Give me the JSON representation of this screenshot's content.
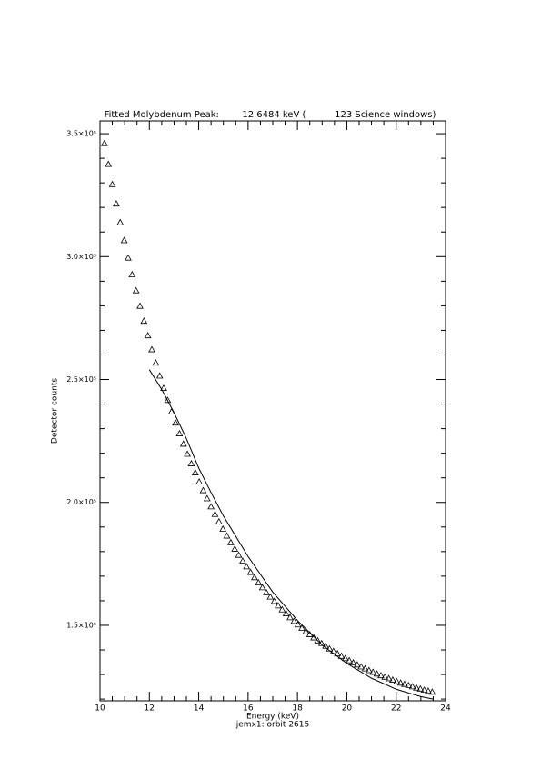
{
  "chart_data": {
    "type": "scatter",
    "title": "Fitted Molybdenum Peak:        12.6484 keV (          123 Science windows)",
    "subtitle": "jemx1: orbit 2615",
    "x_label": "Energy (keV)",
    "y_label": "Detector counts",
    "xlim": [
      10,
      24
    ],
    "ylim": [
      119300,
      355200
    ],
    "xticks": [
      10,
      12,
      14,
      16,
      18,
      20,
      22,
      24
    ],
    "xminorticks": [
      10.5,
      11,
      11.5,
      12.5,
      13,
      13.5,
      14.5,
      15,
      15.5,
      16.5,
      17,
      17.5,
      18.5,
      19,
      19.5,
      20.5,
      21,
      21.5,
      22.5,
      23,
      23.5
    ],
    "yticks": [
      {
        "value": 150000,
        "label": "1.5×10⁵"
      },
      {
        "value": 200000,
        "label": "2.0×10⁵"
      },
      {
        "value": 250000,
        "label": "2.5×10⁵"
      },
      {
        "value": 300000,
        "label": "3.0×10⁵"
      },
      {
        "value": 350000,
        "label": "3.5×10⁵"
      }
    ],
    "yminorticks": [
      120000,
      130000,
      140000,
      160000,
      170000,
      180000,
      190000,
      210000,
      220000,
      230000,
      240000,
      260000,
      270000,
      280000,
      290000,
      310000,
      320000,
      330000,
      340000
    ],
    "color": "#000000",
    "x": [
      10.18,
      10.34,
      10.5,
      10.66,
      10.82,
      10.98,
      11.14,
      11.3,
      11.46,
      11.62,
      11.78,
      11.94,
      12.1,
      12.26,
      12.42,
      12.58,
      12.74,
      12.9,
      13.06,
      13.22,
      13.38,
      13.54,
      13.7,
      13.86,
      14.02,
      14.18,
      14.34,
      14.5,
      14.66,
      14.82,
      14.98,
      15.14,
      15.3,
      15.46,
      15.62,
      15.78,
      15.94,
      16.1,
      16.26,
      16.42,
      16.58,
      16.74,
      16.9,
      17.06,
      17.22,
      17.38,
      17.54,
      17.7,
      17.86,
      18.02,
      18.18,
      18.34,
      18.5,
      18.66,
      18.82,
      18.98,
      19.14,
      19.3,
      19.46,
      19.62,
      19.78,
      19.94,
      20.1,
      20.26,
      20.42,
      20.58,
      20.74,
      20.9,
      21.06,
      21.22,
      21.38,
      21.54,
      21.7,
      21.86,
      22.02,
      22.18,
      22.34,
      22.5,
      22.66,
      22.82,
      22.98,
      23.14,
      23.3,
      23.46
    ],
    "values": [
      346100,
      337600,
      329400,
      321500,
      313900,
      306600,
      299500,
      292700,
      286200,
      279900,
      273800,
      267900,
      262200,
      256800,
      251500,
      246500,
      241600,
      236900,
      232400,
      228000,
      223800,
      219700,
      215800,
      212100,
      208400,
      204900,
      201600,
      198300,
      195200,
      192200,
      189200,
      186400,
      183700,
      181100,
      178600,
      176200,
      173900,
      171600,
      169500,
      167400,
      165400,
      163400,
      161600,
      159800,
      158000,
      156400,
      154800,
      153200,
      151700,
      150300,
      148900,
      147500,
      146300,
      145000,
      143800,
      142700,
      141600,
      140500,
      139500,
      138500,
      137500,
      136600,
      135700,
      134800,
      134000,
      133200,
      132400,
      131700,
      131000,
      130300,
      129600,
      129000,
      128400,
      127800,
      127200,
      126600,
      126100,
      125600,
      125100,
      124600,
      124200,
      123700,
      123300,
      122900
    ],
    "fit": {
      "x": [
        12.0,
        12.5,
        13,
        13.5,
        14,
        14.5,
        15,
        16,
        17,
        18,
        19,
        20,
        21,
        22,
        23,
        23.5
      ],
      "values": [
        254000,
        246000,
        236500,
        226000,
        214000,
        204000,
        194500,
        178000,
        163500,
        152000,
        142000,
        134500,
        128500,
        124000,
        121000,
        120000
      ]
    }
  }
}
